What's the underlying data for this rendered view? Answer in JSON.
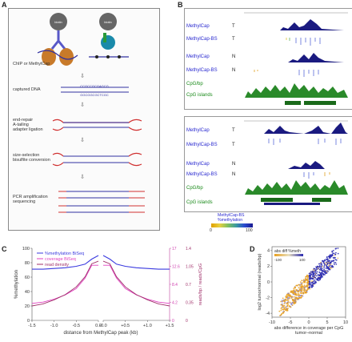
{
  "panels": {
    "a": "A",
    "b": "B",
    "c": "C",
    "d": "D"
  },
  "panelA": {
    "probe_left": "biotin",
    "probe_right": "biotin",
    "step_labels": [
      "ChIP or MethylCap",
      "captured DNA",
      "end-repair\nA-tailing\nadapter ligation",
      "size-selection\nbisulfite conversion",
      "PCR amplification\nsequencing"
    ],
    "seq_top": "CCGCCGCGAGCG",
    "seq_bottom": "GGCGGCGCTCGC"
  },
  "panelB": {
    "top_tracks": [
      {
        "label": "MethylCap",
        "tag": "T"
      },
      {
        "label": "MethylCap-BS",
        "tag": "T"
      },
      {
        "label": "MethylCap",
        "tag": "N"
      },
      {
        "label": "MethylCap-BS",
        "tag": "N"
      },
      {
        "label": "CpG/bp",
        "tag": ""
      },
      {
        "label": "CpG islands",
        "tag": ""
      }
    ],
    "bottom_tracks": [
      {
        "label": "MethylCap",
        "tag": "T"
      },
      {
        "label": "MethylCap-BS",
        "tag": "T"
      },
      {
        "label": "MethylCap",
        "tag": "N"
      },
      {
        "label": "MethylCap-BS",
        "tag": "N"
      },
      {
        "label": "CpG/bp",
        "tag": ""
      },
      {
        "label": "CpG islands",
        "tag": ""
      }
    ],
    "colorbar_title1": "MethylCap-BS",
    "colorbar_title2": "%methylation",
    "colorbar_min": "0",
    "colorbar_max": "100"
  },
  "chart_data": [
    {
      "type": "line",
      "panel": "C",
      "ylabel": "%methylation",
      "y2label": "reads/bp",
      "y3label": "reads/CpG",
      "xlabel": "distance from MethylCap peak (kb)",
      "xticks_left": [
        "-1.5",
        "-1.0",
        "-0.5",
        "0.0"
      ],
      "xticks_right": [
        "-0.0",
        "+0.5",
        "+1.0",
        "+1.5"
      ],
      "yticks_left": [
        "0",
        "20",
        "40",
        "60",
        "80",
        "100"
      ],
      "yticks_right1": [
        "0",
        "4.2",
        "8.4",
        "12.6",
        "17"
      ],
      "yticks_right2": [
        "0",
        "0.35",
        "0.7",
        "1.05",
        "1.4"
      ],
      "legend": [
        "%methylation BiSeq",
        "coverage BiSeq",
        "read density"
      ],
      "series": [
        {
          "name": "%methylation BiSeq",
          "color": "#3a3adf",
          "x": [
            -1.5,
            -1.25,
            -1.0,
            -0.75,
            -0.5,
            -0.3,
            -0.15,
            0.0,
            0.15,
            0.3,
            0.5,
            0.75,
            1.0,
            1.25,
            1.5
          ],
          "y": [
            71,
            71,
            72,
            73,
            75,
            78,
            85,
            90,
            85,
            78,
            75,
            73,
            72,
            71,
            71
          ]
        },
        {
          "name": "coverage BiSeq",
          "color": "#e040c0",
          "x": [
            -1.5,
            -1.25,
            -1.0,
            -0.75,
            -0.5,
            -0.3,
            -0.15,
            0.0,
            0.15,
            0.3,
            0.5,
            0.75,
            1.0,
            1.25,
            1.5
          ],
          "y": [
            4,
            4.3,
            5,
            6,
            7.5,
            10,
            13,
            13,
            13,
            10,
            7.5,
            6,
            5,
            4.3,
            4
          ]
        },
        {
          "name": "read density",
          "color": "#a0306a",
          "x": [
            -1.5,
            -1.25,
            -1.0,
            -0.75,
            -0.5,
            -0.3,
            -0.15,
            0.0,
            0.15,
            0.3,
            0.5,
            0.75,
            1.0,
            1.25,
            1.5
          ],
          "y": [
            2.8,
            3.2,
            4,
            5,
            6.5,
            8.5,
            11,
            11.5,
            11,
            8.5,
            6.5,
            5,
            4,
            3.2,
            2.8
          ]
        }
      ]
    },
    {
      "type": "scatter",
      "panel": "D",
      "xlabel": "abs difference in coverage per CpG",
      "xlabel2": "tumor–normal",
      "ylabel": "log2 tumor/normal (reads/bp)",
      "xticks": [
        "-10",
        "-5",
        "0",
        "5",
        "10"
      ],
      "yticks": [
        "-4",
        "-2",
        "0",
        "2",
        "4"
      ],
      "xlim": [
        -10,
        10
      ],
      "ylim": [
        -4.5,
        4.5
      ],
      "legend_title": "abs diff %meth",
      "legend_min": "-100",
      "legend_max": "100"
    }
  ]
}
